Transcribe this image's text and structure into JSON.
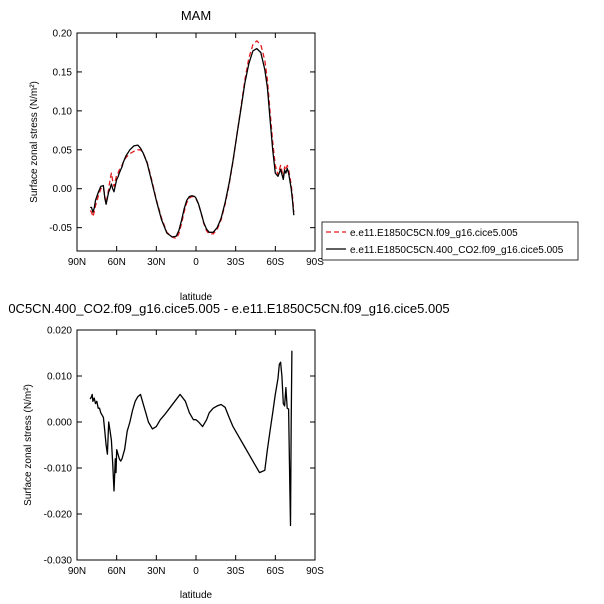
{
  "chart_data": [
    {
      "type": "line",
      "title": "MAM",
      "xlabel": "latitude",
      "ylabel": "Surface zonal stress (N/m²)",
      "xlim": [
        90,
        -90
      ],
      "ylim": [
        -0.08,
        0.2
      ],
      "x_ticks": [
        90,
        60,
        30,
        0,
        -30,
        -60,
        -90
      ],
      "x_tick_labels": [
        "90N",
        "60N",
        "30N",
        "0",
        "30S",
        "60S",
        "90S"
      ],
      "y_ticks": [
        -0.05,
        0.0,
        0.05,
        0.1,
        0.15,
        0.2
      ],
      "y_tick_labels": [
        "-0.05",
        "0.00",
        "0.05",
        "0.10",
        "0.15",
        "0.20"
      ],
      "legend_position": "right",
      "series": [
        {
          "name": "e.e11.E1850C5CN.f09_g16.cice5.005",
          "color": "#e31a1c",
          "dash": "dashed",
          "x": [
            80,
            79,
            78,
            77,
            76,
            74,
            72,
            70,
            69,
            68,
            67,
            66,
            65,
            64,
            63,
            62,
            61,
            60,
            59,
            58,
            57,
            56,
            55,
            53,
            50,
            47,
            44,
            42,
            40,
            37,
            34,
            30,
            26,
            22,
            18,
            15,
            13,
            11,
            9,
            7,
            5,
            3,
            1,
            0,
            -2,
            -4,
            -6,
            -8,
            -10,
            -13,
            -16,
            -19,
            -22,
            -25,
            -28,
            -31,
            -34,
            -37,
            -40,
            -43,
            -46,
            -49,
            -52,
            -54,
            -56,
            -58,
            -60,
            -62,
            -64,
            -66,
            -67,
            -68,
            -69,
            -70,
            -71,
            -72,
            -73,
            -74
          ],
          "y": [
            -0.028,
            -0.03,
            -0.036,
            -0.03,
            -0.022,
            -0.01,
            0.0,
            0.002,
            -0.01,
            -0.018,
            -0.01,
            0.0,
            0.012,
            0.02,
            0.01,
            0.003,
            0.01,
            0.018,
            0.02,
            0.024,
            0.028,
            0.03,
            0.034,
            0.04,
            0.045,
            0.048,
            0.05,
            0.05,
            0.046,
            0.034,
            0.015,
            -0.014,
            -0.038,
            -0.056,
            -0.062,
            -0.064,
            -0.058,
            -0.045,
            -0.03,
            -0.018,
            -0.012,
            -0.01,
            -0.011,
            -0.013,
            -0.02,
            -0.032,
            -0.045,
            -0.054,
            -0.058,
            -0.058,
            -0.052,
            -0.04,
            -0.02,
            0.005,
            0.035,
            0.07,
            0.105,
            0.14,
            0.168,
            0.185,
            0.19,
            0.185,
            0.165,
            0.14,
            0.1,
            0.06,
            0.03,
            0.018,
            0.03,
            0.015,
            0.028,
            0.024,
            0.03,
            0.025,
            0.015,
            0.005,
            -0.01,
            -0.03
          ]
        },
        {
          "name": "e.e11.E1850C5CN.400_CO2.f09_g16.cice5.005",
          "color": "#000000",
          "dash": "solid",
          "x": [
            80,
            79,
            78,
            77,
            76,
            74,
            72,
            70,
            69,
            68,
            67,
            66,
            65,
            64,
            63,
            62,
            61,
            60,
            59,
            58,
            57,
            56,
            55,
            53,
            50,
            47,
            44,
            42,
            40,
            37,
            34,
            30,
            26,
            22,
            18,
            15,
            13,
            11,
            9,
            7,
            5,
            3,
            1,
            0,
            -2,
            -4,
            -6,
            -8,
            -10,
            -13,
            -16,
            -19,
            -22,
            -25,
            -28,
            -31,
            -34,
            -37,
            -40,
            -43,
            -46,
            -49,
            -52,
            -54,
            -56,
            -58,
            -60,
            -62,
            -64,
            -66,
            -67,
            -68,
            -69,
            -70,
            -71,
            -72,
            -73,
            -74
          ],
          "y": [
            -0.024,
            -0.024,
            -0.03,
            -0.025,
            -0.015,
            -0.005,
            0.003,
            0.004,
            -0.012,
            -0.02,
            -0.012,
            -0.004,
            0.0,
            0.006,
            0.0,
            -0.004,
            0.004,
            0.012,
            0.015,
            0.02,
            0.024,
            0.028,
            0.034,
            0.042,
            0.05,
            0.055,
            0.056,
            0.052,
            0.046,
            0.033,
            0.013,
            -0.015,
            -0.04,
            -0.057,
            -0.062,
            -0.061,
            -0.054,
            -0.041,
            -0.026,
            -0.015,
            -0.01,
            -0.009,
            -0.01,
            -0.012,
            -0.02,
            -0.032,
            -0.044,
            -0.052,
            -0.056,
            -0.056,
            -0.05,
            -0.038,
            -0.018,
            0.007,
            0.036,
            0.07,
            0.103,
            0.136,
            0.161,
            0.177,
            0.18,
            0.175,
            0.153,
            0.13,
            0.09,
            0.05,
            0.02,
            0.016,
            0.025,
            0.012,
            0.024,
            0.02,
            0.026,
            0.02,
            0.01,
            0.0,
            -0.015,
            -0.034
          ]
        }
      ]
    },
    {
      "type": "line",
      "title": "0C5CN.400_CO2.f09_g16.cice5.005 - e.e11.E1850C5CN.f09_g16.cice5.005",
      "xlabel": "latitude",
      "ylabel": "Surface zonal stress (N/m²)",
      "xlim": [
        90,
        -90
      ],
      "ylim": [
        -0.03,
        0.02
      ],
      "x_ticks": [
        90,
        60,
        30,
        0,
        -30,
        -60,
        -90
      ],
      "x_tick_labels": [
        "90N",
        "60N",
        "30N",
        "0",
        "30S",
        "60S",
        "90S"
      ],
      "y_ticks": [
        -0.03,
        -0.02,
        -0.01,
        0.0,
        0.01,
        0.02
      ],
      "y_tick_labels": [
        "-0.030",
        "-0.020",
        "-0.010",
        "0.000",
        "0.010",
        "0.020"
      ],
      "series": [
        {
          "name": "",
          "color": "#000000",
          "dash": "solid",
          "x": [
            80,
            79,
            78.5,
            78,
            77,
            76,
            75,
            74,
            73,
            72,
            71,
            70,
            69,
            68,
            67,
            66,
            65,
            64,
            63,
            62,
            61,
            60.5,
            60,
            59,
            58,
            57,
            56,
            55,
            54,
            53,
            52,
            50,
            48,
            46,
            44,
            42,
            40,
            38,
            36,
            33,
            30,
            27,
            24,
            20,
            16,
            12,
            8,
            5,
            2,
            0,
            -2,
            -5,
            -8,
            -10,
            -13,
            -16,
            -19,
            -22,
            -25,
            -28,
            -32,
            -36,
            -40,
            -44,
            -48,
            -52,
            -54,
            -56,
            -58,
            -60,
            -62,
            -63,
            -64,
            -65,
            -66,
            -67,
            -68,
            -69,
            -70,
            -71,
            -71.5,
            -72,
            -72.5
          ],
          "y": [
            0.005,
            0.0055,
            0.006,
            0.0045,
            0.0052,
            0.004,
            0.0045,
            0.003,
            0.003,
            0.002,
            0.0015,
            0.001,
            -0.002,
            -0.005,
            -0.007,
            0.0,
            -0.002,
            -0.004,
            -0.009,
            -0.015,
            -0.008,
            -0.011,
            -0.006,
            -0.007,
            -0.008,
            -0.0085,
            -0.008,
            -0.007,
            -0.006,
            -0.004,
            -0.002,
            0.0,
            0.0025,
            0.0045,
            0.0055,
            0.006,
            0.004,
            0.002,
            0.0,
            -0.0015,
            -0.001,
            0.0005,
            0.0015,
            0.003,
            0.0045,
            0.006,
            0.0045,
            0.002,
            0.0005,
            0.0005,
            0.0,
            -0.001,
            0.0005,
            0.002,
            0.003,
            0.0035,
            0.0038,
            0.0032,
            0.001,
            -0.001,
            -0.003,
            -0.005,
            -0.007,
            -0.009,
            -0.011,
            -0.0105,
            -0.006,
            -0.002,
            0.002,
            0.006,
            0.0095,
            0.0125,
            0.013,
            0.01,
            0.004,
            0.0035,
            0.0075,
            0.003,
            0.0028,
            -0.015,
            -0.0225,
            0.0,
            0.0155
          ]
        }
      ]
    }
  ]
}
